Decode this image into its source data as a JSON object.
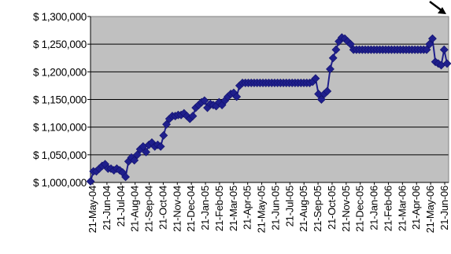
{
  "chart_data": {
    "type": "line",
    "title": "",
    "xlabel": "",
    "ylabel": "",
    "ylim": [
      1000000,
      1300000
    ],
    "yticks": [
      1000000,
      1050000,
      1100000,
      1150000,
      1200000,
      1250000,
      1300000
    ],
    "ytick_labels": [
      "$ 1,000,000",
      "$ 1,050,000",
      "$ 1,100,000",
      "$ 1,150,000",
      "$ 1,200,000",
      "$ 1,250,000",
      "$ 1,300,000"
    ],
    "grid": "horizontal",
    "legend": "none",
    "colors": {
      "series": "#1f1f8c",
      "plot_background": "#c0c0c0",
      "grid": "#000000"
    },
    "x_tick_labels": [
      "21-May-04",
      "21-Jun-04",
      "21-Jul-04",
      "21-Aug-04",
      "21-Sep-04",
      "21-Oct-04",
      "21-Nov-04",
      "21-Dec-04",
      "21-Jan-05",
      "21-Feb-05",
      "21-Mar-05",
      "21-Apr-05",
      "21-May-05",
      "21-Jun-05",
      "21-Jul-05",
      "21-Aug-05",
      "21-Sep-05",
      "21-Oct-05",
      "21-Nov-05",
      "21-Dec-05",
      "21-Jan-06",
      "21-Feb-06",
      "21-Mar-06",
      "21-Apr-06",
      "21-May-06",
      "21-Jun-06"
    ],
    "series": [
      {
        "values": [
          1002000,
          1020000,
          1020000,
          1025000,
          1030000,
          1033000,
          1025000,
          1025000,
          1022000,
          1025000,
          1022000,
          1018000,
          1010000,
          1038000,
          1045000,
          1040000,
          1050000,
          1060000,
          1065000,
          1055000,
          1068000,
          1072000,
          1065000,
          1068000,
          1065000,
          1085000,
          1105000,
          1115000,
          1120000,
          1120000,
          1122000,
          1122000,
          1125000,
          1120000,
          1115000,
          1120000,
          1135000,
          1140000,
          1145000,
          1148000,
          1135000,
          1142000,
          1140000,
          1138000,
          1145000,
          1140000,
          1148000,
          1155000,
          1160000,
          1162000,
          1155000,
          1175000,
          1180000,
          1180000,
          1180000,
          1180000,
          1180000,
          1180000,
          1180000,
          1180000,
          1180000,
          1180000,
          1180000,
          1180000,
          1180000,
          1180000,
          1180000,
          1180000,
          1180000,
          1180000,
          1180000,
          1180000,
          1180000,
          1180000,
          1180000,
          1180000,
          1182000,
          1188000,
          1160000,
          1150000,
          1160000,
          1165000,
          1205000,
          1225000,
          1240000,
          1255000,
          1262000,
          1260000,
          1255000,
          1250000,
          1240000,
          1240000,
          1240000,
          1240000,
          1240000,
          1240000,
          1240000,
          1240000,
          1240000,
          1240000,
          1240000,
          1240000,
          1240000,
          1240000,
          1240000,
          1240000,
          1240000,
          1240000,
          1240000,
          1240000,
          1240000,
          1240000,
          1240000,
          1240000,
          1240000,
          1240000,
          1250000,
          1260000,
          1218000,
          1215000,
          1212000,
          1240000,
          1215000
        ]
      }
    ]
  }
}
